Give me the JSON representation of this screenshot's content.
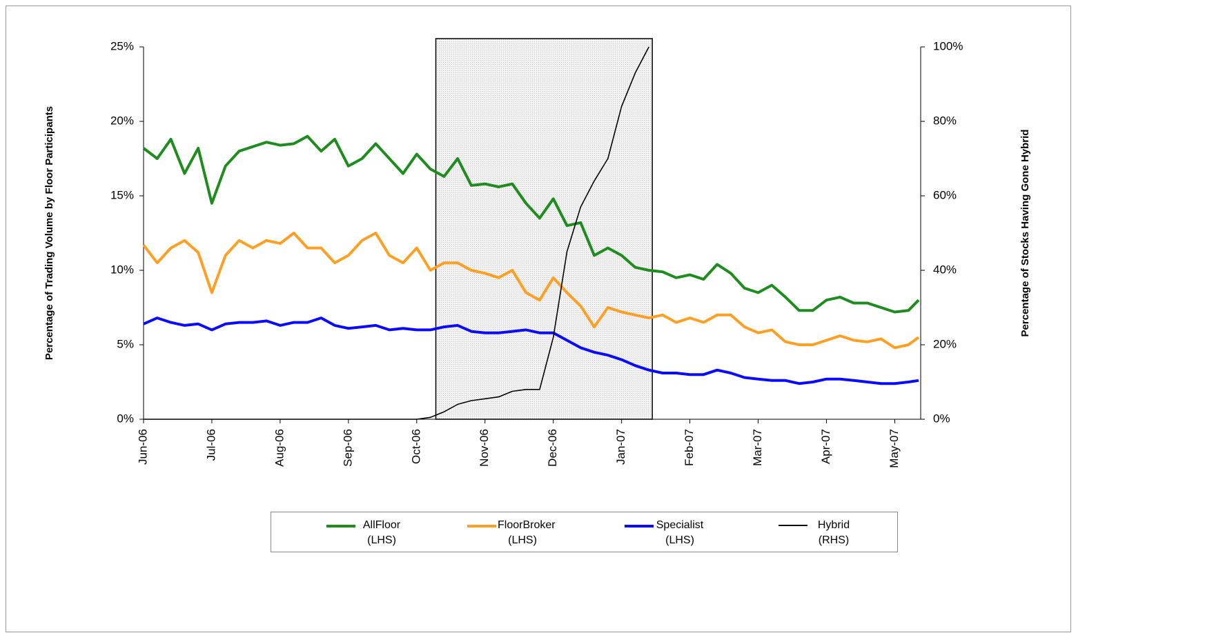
{
  "chart_data": {
    "type": "line",
    "x": [
      0,
      0.2,
      0.4,
      0.6,
      0.8,
      1,
      1.2,
      1.4,
      1.6,
      1.8,
      2,
      2.2,
      2.4,
      2.6,
      2.8,
      3,
      3.2,
      3.4,
      3.6,
      3.8,
      4,
      4.2,
      4.4,
      4.6,
      4.8,
      5,
      5.2,
      5.4,
      5.6,
      5.8,
      6,
      6.2,
      6.4,
      6.6,
      6.8,
      7,
      7.2,
      7.4,
      7.6,
      7.8,
      8,
      8.2,
      8.4,
      8.6,
      8.8,
      9,
      9.2,
      9.4,
      9.6,
      9.8,
      10,
      10.2,
      10.4,
      10.6,
      10.8,
      11,
      11.2,
      11.35
    ],
    "xlim": [
      0,
      11.38
    ],
    "xticks": [
      {
        "value": 0,
        "label": "Jun-06"
      },
      {
        "value": 1,
        "label": "Jul-06"
      },
      {
        "value": 2,
        "label": "Aug-06"
      },
      {
        "value": 3,
        "label": "Sep-06"
      },
      {
        "value": 4,
        "label": "Oct-06"
      },
      {
        "value": 5,
        "label": "Nov-06"
      },
      {
        "value": 6,
        "label": "Dec-06"
      },
      {
        "value": 7,
        "label": "Jan-07"
      },
      {
        "value": 8,
        "label": "Feb-07"
      },
      {
        "value": 9,
        "label": "Mar-07"
      },
      {
        "value": 10,
        "label": "Apr-07"
      },
      {
        "value": 11,
        "label": "May-07"
      }
    ],
    "ylabel": "Percentage of Trading Volume by Floor Participants",
    "y2label": "Percentage of Stocks Having Gone Hybrid",
    "ylim": [
      0,
      25
    ],
    "yticks": [
      {
        "value": 0,
        "label": "0%"
      },
      {
        "value": 5,
        "label": "5%"
      },
      {
        "value": 10,
        "label": "10%"
      },
      {
        "value": 15,
        "label": "15%"
      },
      {
        "value": 20,
        "label": "20%"
      },
      {
        "value": 25,
        "label": "25%"
      }
    ],
    "y2lim": [
      0,
      100
    ],
    "y2ticks": [
      {
        "value": 0,
        "label": "0%"
      },
      {
        "value": 20,
        "label": "20%"
      },
      {
        "value": 40,
        "label": "40%"
      },
      {
        "value": 60,
        "label": "60%"
      },
      {
        "value": 80,
        "label": "80%"
      },
      {
        "value": 100,
        "label": "100%"
      }
    ],
    "highlight_xrange": [
      4.28,
      7.45
    ],
    "legend": "bottom",
    "series": [
      {
        "name": "AllFloor (LHS)",
        "color": "#1e8c1e",
        "width": 4,
        "values": [
          18.2,
          17.5,
          18.8,
          16.5,
          18.2,
          14.5,
          17.0,
          18.0,
          18.3,
          18.6,
          18.4,
          18.5,
          19.0,
          18.0,
          18.8,
          17.0,
          17.5,
          18.5,
          17.5,
          16.5,
          17.8,
          16.8,
          16.3,
          17.5,
          15.7,
          15.8,
          15.6,
          15.8,
          14.5,
          13.5,
          14.8,
          13.0,
          13.2,
          11.0,
          11.5,
          11.0,
          10.2,
          10.0,
          9.9,
          9.5,
          9.7,
          9.4,
          10.4,
          9.8,
          8.8,
          8.5,
          9.0,
          8.2,
          7.3,
          7.3,
          8.0,
          8.2,
          7.8,
          7.8,
          7.5,
          7.2,
          7.3,
          8.0
        ]
      },
      {
        "name": "FloorBroker (LHS)",
        "color": "#ffa024",
        "width": 4,
        "values": [
          11.7,
          10.5,
          11.5,
          12.0,
          11.2,
          8.5,
          11.0,
          12.0,
          11.5,
          12.0,
          11.8,
          12.5,
          11.5,
          11.5,
          10.5,
          11.0,
          12.0,
          12.5,
          11.0,
          10.5,
          11.5,
          10.0,
          10.5,
          10.5,
          10.0,
          9.8,
          9.5,
          10.0,
          8.5,
          8.0,
          9.5,
          8.5,
          7.6,
          6.2,
          7.5,
          7.2,
          7.0,
          6.8,
          7.0,
          6.5,
          6.8,
          6.5,
          7.0,
          7.0,
          6.2,
          5.8,
          6.0,
          5.2,
          5.0,
          5.0,
          5.3,
          5.6,
          5.3,
          5.2,
          5.4,
          4.8,
          5.0,
          5.5
        ]
      },
      {
        "name": "Specialist (LHS)",
        "color": "#0a0aff",
        "width": 4,
        "values": [
          6.4,
          6.8,
          6.5,
          6.3,
          6.4,
          6.0,
          6.4,
          6.5,
          6.5,
          6.6,
          6.3,
          6.5,
          6.5,
          6.8,
          6.3,
          6.1,
          6.2,
          6.3,
          6.0,
          6.1,
          6.0,
          6.0,
          6.2,
          6.3,
          5.9,
          5.8,
          5.8,
          5.9,
          6.0,
          5.8,
          5.8,
          5.3,
          4.8,
          4.5,
          4.3,
          4.0,
          3.6,
          3.3,
          3.1,
          3.1,
          3.0,
          3.0,
          3.3,
          3.1,
          2.8,
          2.7,
          2.6,
          2.6,
          2.4,
          2.5,
          2.7,
          2.7,
          2.6,
          2.5,
          2.4,
          2.4,
          2.5,
          2.6
        ]
      },
      {
        "name": "Hybrid (RHS)",
        "color": "#000000",
        "width": 1.6,
        "axis": "y2",
        "values": [
          0,
          0,
          0,
          0,
          0,
          0,
          0,
          0,
          0,
          0,
          0,
          0,
          0,
          0,
          0,
          0,
          0,
          0,
          0,
          0,
          0,
          0.5,
          2,
          4,
          5,
          5.5,
          6,
          7.5,
          8,
          8,
          22,
          45,
          57,
          64,
          70,
          84,
          93,
          100,
          null,
          null,
          null,
          null,
          null,
          null,
          null,
          null,
          null,
          null,
          null,
          null,
          null,
          null,
          null,
          null,
          null,
          null,
          null,
          null
        ]
      }
    ]
  }
}
